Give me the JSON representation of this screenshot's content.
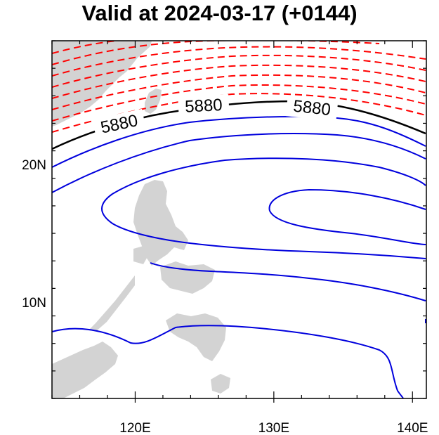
{
  "title": "Valid at 2024-03-17 (+0144)",
  "map": {
    "lon_range": [
      114,
      141
    ],
    "lat_range": [
      3,
      29
    ],
    "projection": "cylindrical-equidistant",
    "land_color": "#d3d3d3",
    "x_ticks": [
      {
        "value": 120,
        "label": "120E"
      },
      {
        "value": 130,
        "label": "130E"
      },
      {
        "value": 140,
        "label": "140E"
      }
    ],
    "y_ticks": [
      {
        "value": 10,
        "label": "10N"
      },
      {
        "value": 20,
        "label": "20N"
      }
    ],
    "contours": {
      "highlight_value": 5880,
      "highlight_color": "#000000",
      "below_color": "#0000dd",
      "above_color": "#ff0000",
      "above_style": "dashed",
      "labels": [
        "5880",
        "5880",
        "5880"
      ]
    }
  }
}
